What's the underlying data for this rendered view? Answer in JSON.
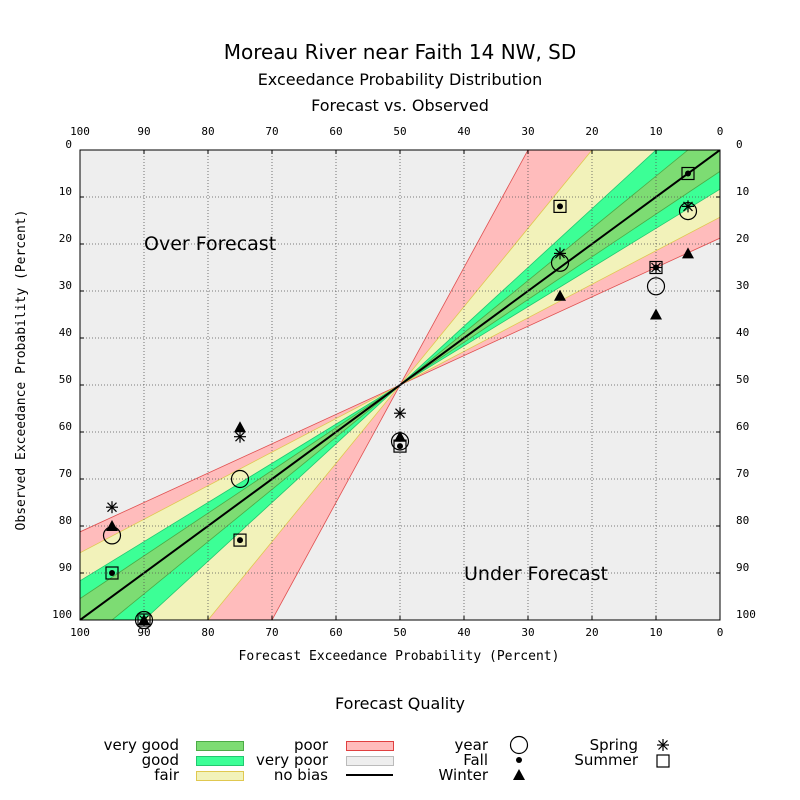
{
  "chart_data": {
    "type": "scatter",
    "title": "Moreau River near Faith 14 NW, SD",
    "subtitle": "Exceedance Probability Distribution",
    "subtitle2": "Forecast vs. Observed",
    "xlabel": "Forecast Exceedance Probability (Percent)",
    "ylabel": "Observed Exceedance Probability (Percent)",
    "xlim": [
      100,
      0
    ],
    "ylim": [
      0,
      100
    ],
    "ticks": [
      "100",
      "90",
      "80",
      "70",
      "60",
      "50",
      "40",
      "30",
      "20",
      "10",
      "0"
    ],
    "yticks": [
      "0",
      "10",
      "20",
      "30",
      "40",
      "50",
      "60",
      "70",
      "80",
      "90",
      "100"
    ],
    "annotations": {
      "over": "Over Forecast",
      "under": "Under Forecast"
    },
    "bands": [
      {
        "name": "very good",
        "halfwidth": 5,
        "color": "#7ddc73"
      },
      {
        "name": "good",
        "halfwidth": 10,
        "color": "#3cff96"
      },
      {
        "name": "fair",
        "halfwidth": 20,
        "color": "#f2f2ba"
      },
      {
        "name": "poor",
        "halfwidth": 30,
        "color": "#ffbcbc"
      }
    ],
    "background_color": "#eeeeee",
    "series": [
      {
        "name": "year",
        "marker": "circle",
        "points": [
          [
            95,
            82
          ],
          [
            90,
            100
          ],
          [
            75,
            70
          ],
          [
            50,
            62
          ],
          [
            25,
            24
          ],
          [
            10,
            29
          ],
          [
            5,
            13
          ]
        ]
      },
      {
        "name": "Fall",
        "marker": "dot",
        "points": [
          [
            95,
            90
          ],
          [
            90,
            100
          ],
          [
            75,
            83
          ],
          [
            50,
            63
          ],
          [
            25,
            12
          ],
          [
            10,
            25
          ],
          [
            5,
            5
          ]
        ]
      },
      {
        "name": "Winter",
        "marker": "triangle",
        "points": [
          [
            95,
            80
          ],
          [
            90,
            100
          ],
          [
            75,
            59
          ],
          [
            50,
            61
          ],
          [
            25,
            31
          ],
          [
            10,
            35
          ],
          [
            5,
            22
          ]
        ]
      },
      {
        "name": "Spring",
        "marker": "asterisk",
        "points": [
          [
            95,
            76
          ],
          [
            90,
            100
          ],
          [
            75,
            61
          ],
          [
            50,
            56
          ],
          [
            25,
            22
          ],
          [
            10,
            25
          ],
          [
            5,
            12
          ]
        ]
      },
      {
        "name": "Summer",
        "marker": "square",
        "points": [
          [
            95,
            90
          ],
          [
            90,
            100
          ],
          [
            75,
            83
          ],
          [
            50,
            63
          ],
          [
            25,
            12
          ],
          [
            10,
            25
          ],
          [
            5,
            5
          ]
        ]
      }
    ]
  },
  "legend": {
    "title": "Forecast Quality",
    "very_good": "very good",
    "good": "good",
    "fair": "fair",
    "poor": "poor",
    "very_poor": "very poor",
    "no_bias": "no bias",
    "year": "year",
    "fall": "Fall",
    "winter": "Winter",
    "spring": "Spring",
    "summer": "Summer",
    "colors": {
      "very_good": "#7ddc73",
      "good": "#3cff96",
      "fair": "#f2f2ba",
      "poor": "#ffbcbc",
      "very_poor": "#eeeeee"
    }
  }
}
